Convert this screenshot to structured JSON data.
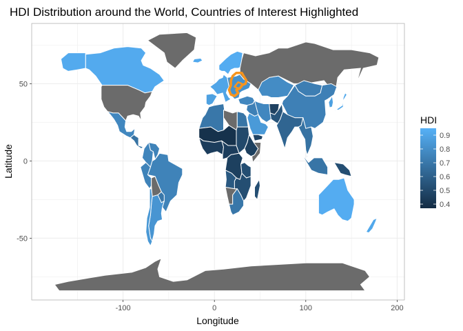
{
  "chart_data": {
    "type": "choropleth-map",
    "title": "HDI Distribution around the World, Countries of Interest Highlighted",
    "xlabel": "Longitude",
    "ylabel": "Latitude",
    "xlim": [
      -200,
      208
    ],
    "ylim": [
      -90,
      89
    ],
    "x_ticks": [
      -100,
      0,
      100,
      200
    ],
    "x_tick_labels": [
      "-100",
      "0",
      "100",
      "200"
    ],
    "y_ticks": [
      -50,
      0,
      50
    ],
    "y_tick_labels": [
      "-50",
      "0",
      "50"
    ],
    "grid": true,
    "legend": {
      "title": "HDI",
      "position": "right",
      "range": [
        0.37,
        0.95
      ],
      "ticks": [
        0.4,
        0.5,
        0.6,
        0.7,
        0.8,
        0.9
      ],
      "tick_labels": [
        "0.4",
        "0.5",
        "0.6",
        "0.7",
        "0.8",
        "0.9"
      ]
    },
    "colors": {
      "low": "#132B43",
      "high": "#56B1F7",
      "missing": "#6b6b6b",
      "highlight": "#f7941d",
      "border": "#ffffff",
      "grid": "#ebebeb",
      "panel_border": "#b3b3b3"
    },
    "regions": [
      {
        "name": "Canada",
        "hdi": 0.92
      },
      {
        "name": "Alaska",
        "hdi": 0.92
      },
      {
        "name": "Greenland",
        "hdi": null
      },
      {
        "name": "United States",
        "hdi": null
      },
      {
        "name": "Mexico",
        "hdi": 0.77
      },
      {
        "name": "Central America",
        "hdi": 0.68
      },
      {
        "name": "Venezuela",
        "hdi": 0.75
      },
      {
        "name": "Colombia",
        "hdi": 0.76
      },
      {
        "name": "Brazil",
        "hdi": 0.75
      },
      {
        "name": "Peru",
        "hdi": 0.75
      },
      {
        "name": "Bolivia",
        "hdi": null
      },
      {
        "name": "Paraguay",
        "hdi": 0.7
      },
      {
        "name": "Argentina",
        "hdi": 0.83
      },
      {
        "name": "Chile",
        "hdi": 0.84
      },
      {
        "name": "Iceland",
        "hdi": 0.92
      },
      {
        "name": "Scandinavia",
        "hdi": 0.93
      },
      {
        "name": "Western Europe",
        "hdi": 0.9
      },
      {
        "name": "Iberia",
        "hdi": 0.88
      },
      {
        "name": "Eastern Europe (highlighted)",
        "hdi": 0.81
      },
      {
        "name": "Russia",
        "hdi": null
      },
      {
        "name": "Kazakhstan",
        "hdi": 0.79
      },
      {
        "name": "Mongolia",
        "hdi": 0.73
      },
      {
        "name": "China",
        "hdi": 0.74
      },
      {
        "name": "Japan",
        "hdi": 0.91
      },
      {
        "name": "Korea",
        "hdi": 0.88
      },
      {
        "name": "Turkey",
        "hdi": 0.77
      },
      {
        "name": "Middle East",
        "hdi": 0.74
      },
      {
        "name": "Saudi Arabia",
        "hdi": 0.85
      },
      {
        "name": "Yemen",
        "hdi": 0.48
      },
      {
        "name": "Iran",
        "hdi": 0.77
      },
      {
        "name": "Afghanistan",
        "hdi": 0.47
      },
      {
        "name": "Pakistan",
        "hdi": 0.55
      },
      {
        "name": "India",
        "hdi": 0.62
      },
      {
        "name": "Southeast Asia",
        "hdi": 0.68
      },
      {
        "name": "Indonesia",
        "hdi": 0.69
      },
      {
        "name": "Papua New Guinea",
        "hdi": 0.52
      },
      {
        "name": "Australia",
        "hdi": 0.93
      },
      {
        "name": "New Zealand",
        "hdi": 0.91
      },
      {
        "name": "North Africa West",
        "hdi": 0.7
      },
      {
        "name": "Libya",
        "hdi": null
      },
      {
        "name": "Egypt",
        "hdi": 0.69
      },
      {
        "name": "Sahel",
        "hdi": 0.4
      },
      {
        "name": "West Africa",
        "hdi": 0.45
      },
      {
        "name": "Sudan",
        "hdi": 0.5
      },
      {
        "name": "Ethiopia",
        "hdi": 0.46
      },
      {
        "name": "Somalia",
        "hdi": null
      },
      {
        "name": "Central Africa",
        "hdi": 0.45
      },
      {
        "name": "Congo DR",
        "hdi": 0.46
      },
      {
        "name": "Tanzania",
        "hdi": 0.52
      },
      {
        "name": "Angola",
        "hdi": 0.57
      },
      {
        "name": "Namibia",
        "hdi": null
      },
      {
        "name": "Southern Africa",
        "hdi": 0.52
      },
      {
        "name": "South Africa",
        "hdi": 0.7
      },
      {
        "name": "Madagascar",
        "hdi": 0.52
      },
      {
        "name": "Antarctica",
        "hdi": null
      }
    ]
  }
}
